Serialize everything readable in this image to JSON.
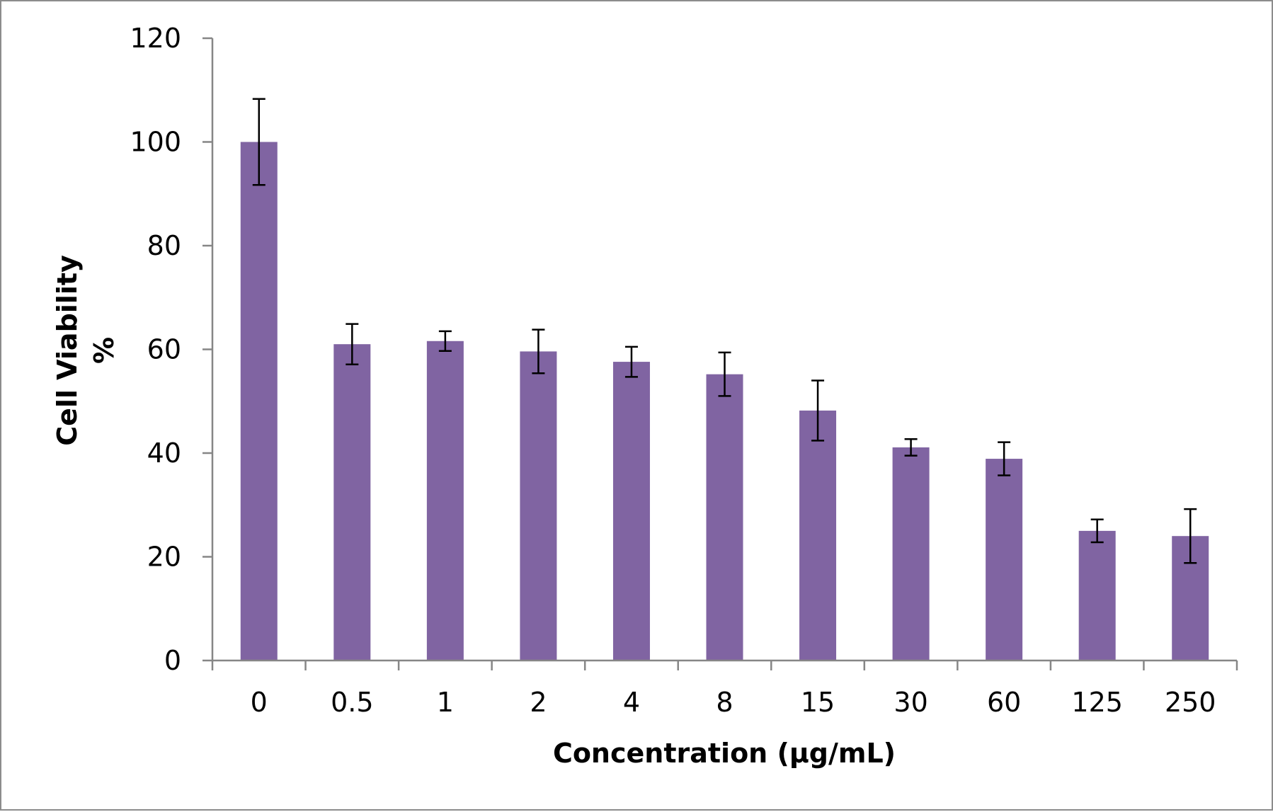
{
  "chart_data": {
    "type": "bar",
    "categories": [
      "0",
      "0.5",
      "1",
      "2",
      "4",
      "8",
      "15",
      "30",
      "60",
      "125",
      "250"
    ],
    "values": [
      100,
      61,
      61.6,
      59.6,
      57.6,
      55.2,
      48.2,
      41.1,
      38.9,
      25,
      24
    ],
    "errors": [
      8.3,
      3.9,
      1.9,
      4.2,
      2.9,
      4.2,
      5.8,
      1.6,
      3.2,
      2.2,
      5.2
    ],
    "xlabel": "Concentration (μg/mL)",
    "ylabel_line1": "Cell Viability",
    "ylabel_line2": "%",
    "ylim": [
      0,
      120
    ],
    "yticks": [
      "0",
      "20",
      "40",
      "60",
      "80",
      "100",
      "120"
    ],
    "grid": false,
    "legend": false,
    "bar_color": "#8064a2",
    "axis_color": "#868686",
    "error_bar_color": "#000000"
  }
}
